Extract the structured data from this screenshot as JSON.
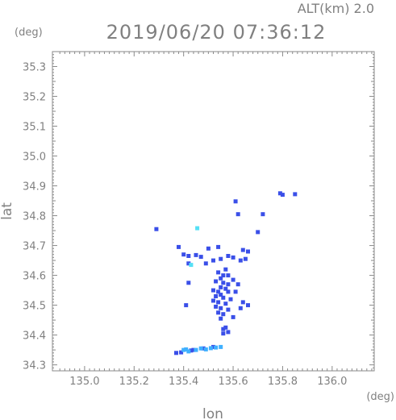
{
  "header": {
    "altitude_label": "ALT(km) 2.0",
    "timestamp": "2019/06/20 07:36:12"
  },
  "chart_data": {
    "type": "scatter",
    "xlabel": "lon",
    "ylabel": "lat",
    "x_unit": "(deg)",
    "y_unit": "(deg)",
    "xlim": [
      134.87,
      136.17
    ],
    "ylim": [
      34.28,
      35.35
    ],
    "x_ticks": [
      "135.0",
      "135.2",
      "135.4",
      "135.6",
      "135.8",
      "136.0"
    ],
    "y_ticks": [
      "34.3",
      "34.4",
      "34.5",
      "34.6",
      "34.7",
      "34.8",
      "34.9",
      "35.0",
      "35.1",
      "35.2",
      "35.3"
    ],
    "grid": false,
    "colors": {
      "primary": "#3a4fe8",
      "light": "#3fb0ff",
      "cyan": "#55e0f5",
      "axis": "#8a8a8a"
    },
    "series": [
      {
        "color": "#3a4fe8",
        "points": [
          [
            135.79,
            34.875
          ],
          [
            135.8,
            34.87
          ],
          [
            135.85,
            34.872
          ],
          [
            135.61,
            34.848
          ],
          [
            135.62,
            34.805
          ],
          [
            135.72,
            34.805
          ],
          [
            135.29,
            34.755
          ],
          [
            135.7,
            34.745
          ],
          [
            135.38,
            34.695
          ],
          [
            135.54,
            34.695
          ],
          [
            135.5,
            34.69
          ],
          [
            135.64,
            34.685
          ],
          [
            135.66,
            34.68
          ],
          [
            135.4,
            34.67
          ],
          [
            135.42,
            34.665
          ],
          [
            135.45,
            34.668
          ],
          [
            135.47,
            34.662
          ],
          [
            135.58,
            34.665
          ],
          [
            135.6,
            34.66
          ],
          [
            135.52,
            34.65
          ],
          [
            135.55,
            34.655
          ],
          [
            135.63,
            34.65
          ],
          [
            135.65,
            34.655
          ],
          [
            135.42,
            34.64
          ],
          [
            135.49,
            34.64
          ],
          [
            135.57,
            34.62
          ],
          [
            135.54,
            34.61
          ],
          [
            135.56,
            34.6
          ],
          [
            135.58,
            34.6
          ],
          [
            135.55,
            34.59
          ],
          [
            135.6,
            34.585
          ],
          [
            135.53,
            34.58
          ],
          [
            135.56,
            34.575
          ],
          [
            135.42,
            34.575
          ],
          [
            135.58,
            34.57
          ],
          [
            135.62,
            34.57
          ],
          [
            135.55,
            34.56
          ],
          [
            135.57,
            34.555
          ],
          [
            135.52,
            34.55
          ],
          [
            135.54,
            34.545
          ],
          [
            135.58,
            34.545
          ],
          [
            135.61,
            34.545
          ],
          [
            135.55,
            34.535
          ],
          [
            135.53,
            34.53
          ],
          [
            135.56,
            34.525
          ],
          [
            135.59,
            34.52
          ],
          [
            135.52,
            34.515
          ],
          [
            135.54,
            34.51
          ],
          [
            135.57,
            34.505
          ],
          [
            135.64,
            34.51
          ],
          [
            135.66,
            34.5
          ],
          [
            135.41,
            34.5
          ],
          [
            135.53,
            34.495
          ],
          [
            135.55,
            34.49
          ],
          [
            135.58,
            34.485
          ],
          [
            135.63,
            34.49
          ],
          [
            135.54,
            34.475
          ],
          [
            135.56,
            34.47
          ],
          [
            135.6,
            34.46
          ],
          [
            135.55,
            34.455
          ],
          [
            135.57,
            34.425
          ],
          [
            135.56,
            34.42
          ],
          [
            135.58,
            34.41
          ],
          [
            135.56,
            34.405
          ],
          [
            135.44,
            34.35
          ],
          [
            135.48,
            34.355
          ],
          [
            135.52,
            34.36
          ],
          [
            135.37,
            34.34
          ],
          [
            135.39,
            34.342
          ],
          [
            135.43,
            34.348
          ]
        ]
      },
      {
        "color": "#3fb0ff",
        "points": [
          [
            135.4,
            34.35
          ],
          [
            135.41,
            34.352
          ],
          [
            135.42,
            34.345
          ],
          [
            135.45,
            34.35
          ],
          [
            135.47,
            34.355
          ],
          [
            135.49,
            34.352
          ],
          [
            135.51,
            34.356
          ],
          [
            135.53,
            34.358
          ],
          [
            135.55,
            34.36
          ]
        ]
      },
      {
        "color": "#55e0f5",
        "points": [
          [
            135.455,
            34.758
          ],
          [
            135.43,
            34.635
          ]
        ]
      }
    ]
  }
}
